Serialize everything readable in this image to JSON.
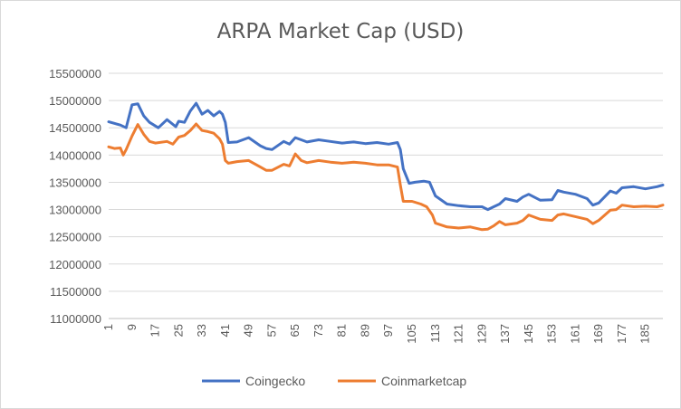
{
  "chart_data": {
    "type": "line",
    "title": "ARPA Market Cap (USD)",
    "xlabel": "",
    "ylabel": "",
    "ylim": [
      11000000,
      15500000
    ],
    "yticks": [
      11000000,
      11500000,
      12000000,
      12500000,
      13000000,
      13500000,
      14000000,
      14500000,
      15000000,
      15500000
    ],
    "xticks": [
      1,
      9,
      17,
      25,
      33,
      41,
      49,
      57,
      65,
      73,
      81,
      89,
      97,
      105,
      113,
      121,
      129,
      137,
      145,
      153,
      161,
      169,
      177,
      185
    ],
    "xlim": [
      1,
      191
    ],
    "grid": true,
    "legend_position": "bottom",
    "series": [
      {
        "name": "Coingecko",
        "color": "#4472c4",
        "x": [
          1,
          5,
          7,
          9,
          11,
          13,
          15,
          18,
          21,
          24,
          25,
          27,
          29,
          31,
          33,
          35,
          37,
          39,
          40,
          41,
          42,
          45,
          49,
          53,
          55,
          57,
          61,
          63,
          65,
          67,
          69,
          73,
          77,
          81,
          85,
          89,
          93,
          97,
          100,
          101,
          102,
          104,
          106,
          109,
          111,
          113,
          117,
          121,
          125,
          129,
          131,
          133,
          135,
          137,
          141,
          143,
          145,
          149,
          153,
          155,
          157,
          161,
          165,
          167,
          169,
          173,
          175,
          177,
          181,
          185,
          189,
          191
        ],
        "values": [
          14610000,
          14550000,
          14500000,
          14920000,
          14940000,
          14720000,
          14600000,
          14500000,
          14650000,
          14520000,
          14620000,
          14600000,
          14810000,
          14950000,
          14750000,
          14820000,
          14720000,
          14800000,
          14750000,
          14600000,
          14230000,
          14240000,
          14320000,
          14170000,
          14120000,
          14100000,
          14250000,
          14200000,
          14320000,
          14280000,
          14240000,
          14280000,
          14250000,
          14220000,
          14240000,
          14210000,
          14230000,
          14200000,
          14230000,
          14100000,
          13750000,
          13480000,
          13500000,
          13520000,
          13500000,
          13250000,
          13100000,
          13070000,
          13050000,
          13050000,
          13000000,
          13050000,
          13100000,
          13200000,
          13150000,
          13230000,
          13280000,
          13170000,
          13180000,
          13350000,
          13320000,
          13280000,
          13200000,
          13080000,
          13120000,
          13340000,
          13300000,
          13400000,
          13420000,
          13380000,
          13420000,
          13450000
        ]
      },
      {
        "name": "Coinmarketcap",
        "color": "#ed7d31",
        "x": [
          1,
          3,
          5,
          6,
          7,
          9,
          11,
          13,
          15,
          17,
          21,
          23,
          25,
          27,
          29,
          31,
          33,
          35,
          37,
          39,
          40,
          41,
          42,
          45,
          49,
          53,
          55,
          57,
          61,
          63,
          65,
          67,
          69,
          73,
          77,
          81,
          85,
          89,
          93,
          97,
          100,
          101,
          102,
          105,
          108,
          110,
          112,
          113,
          117,
          121,
          125,
          129,
          131,
          133,
          135,
          137,
          141,
          143,
          145,
          149,
          153,
          155,
          157,
          161,
          165,
          167,
          169,
          173,
          175,
          177,
          181,
          185,
          189,
          191
        ],
        "values": [
          14150000,
          14120000,
          14130000,
          14000000,
          14100000,
          14350000,
          14560000,
          14380000,
          14250000,
          14220000,
          14250000,
          14200000,
          14330000,
          14360000,
          14450000,
          14570000,
          14450000,
          14430000,
          14400000,
          14300000,
          14200000,
          13900000,
          13850000,
          13880000,
          13900000,
          13780000,
          13720000,
          13720000,
          13830000,
          13800000,
          14020000,
          13900000,
          13860000,
          13900000,
          13870000,
          13850000,
          13870000,
          13850000,
          13820000,
          13820000,
          13780000,
          13450000,
          13150000,
          13150000,
          13100000,
          13050000,
          12900000,
          12750000,
          12680000,
          12660000,
          12680000,
          12630000,
          12640000,
          12700000,
          12780000,
          12720000,
          12750000,
          12800000,
          12900000,
          12820000,
          12800000,
          12900000,
          12920000,
          12870000,
          12820000,
          12740000,
          12800000,
          12990000,
          13000000,
          13080000,
          13050000,
          13060000,
          13050000,
          13080000
        ]
      }
    ]
  }
}
